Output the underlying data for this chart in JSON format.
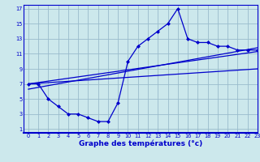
{
  "xlabel": "Graphe des températures (°c)",
  "x_data": [
    0,
    1,
    2,
    3,
    4,
    5,
    6,
    7,
    8,
    9,
    10,
    11,
    12,
    13,
    14,
    15,
    16,
    17,
    18,
    19,
    20,
    21,
    22,
    23
  ],
  "y_main": [
    7,
    7,
    5,
    4,
    3,
    3,
    2.5,
    2,
    2,
    4.5,
    10,
    12,
    13,
    14,
    15,
    17,
    13,
    12.5,
    12.5,
    12,
    12,
    11.5,
    11.5,
    11.5
  ],
  "trend1_x": [
    0,
    23
  ],
  "trend1_y": [
    7.0,
    9.0
  ],
  "trend2_x": [
    0,
    23
  ],
  "trend2_y": [
    6.3,
    11.8
  ],
  "trend3_x": [
    0,
    23
  ],
  "trend3_y": [
    7.0,
    11.3
  ],
  "bg_color": "#cce8ec",
  "line_color": "#0000cc",
  "grid_color": "#99bbcc",
  "xlim": [
    -0.5,
    23
  ],
  "ylim": [
    0.5,
    17.5
  ],
  "xticks": [
    0,
    1,
    2,
    3,
    4,
    5,
    6,
    7,
    8,
    9,
    10,
    11,
    12,
    13,
    14,
    15,
    16,
    17,
    18,
    19,
    20,
    21,
    22,
    23
  ],
  "yticks": [
    1,
    3,
    5,
    7,
    9,
    11,
    13,
    15,
    17
  ],
  "xlabel_color": "#0000cc",
  "tick_color": "#0000cc",
  "tick_fontsize": 4.8,
  "xlabel_fontsize": 6.5,
  "spine_color": "#0000cc"
}
